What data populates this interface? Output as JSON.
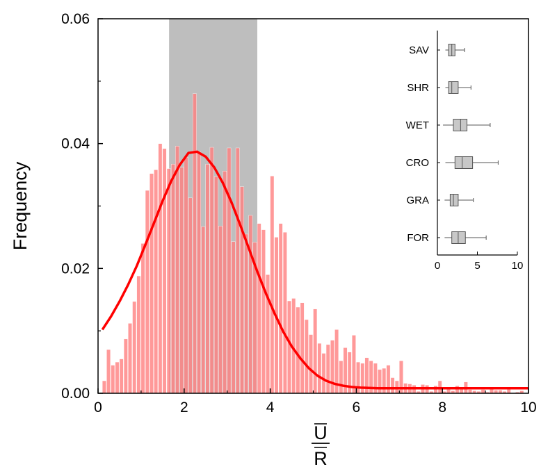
{
  "chart_data": [
    {
      "type": "histogram",
      "xlabel_numerator": "U",
      "xlabel_denominator": "R",
      "ylabel": "Frequency",
      "xlim": [
        0,
        10
      ],
      "ylim": [
        0,
        0.06
      ],
      "xticks": [
        "0",
        "2",
        "4",
        "6",
        "8",
        "10"
      ],
      "yticks": [
        "0.00",
        "0.02",
        "0.04",
        "0.06"
      ],
      "bin_width": 0.1,
      "bins_start": 0.1,
      "values": [
        0.002,
        0.007,
        0.0045,
        0.005,
        0.0055,
        0.0087,
        0.0112,
        0.0147,
        0.0188,
        0.024,
        0.0325,
        0.0352,
        0.0358,
        0.04,
        0.0392,
        0.036,
        0.0367,
        0.0396,
        0.0362,
        0.0378,
        0.0313,
        0.048,
        0.0387,
        0.0267,
        0.0367,
        0.0394,
        0.0347,
        0.0268,
        0.0356,
        0.0393,
        0.0243,
        0.0393,
        0.0331,
        0.0255,
        0.0285,
        0.0242,
        0.0272,
        0.0262,
        0.019,
        0.0348,
        0.025,
        0.0272,
        0.0258,
        0.0148,
        0.0152,
        0.0138,
        0.0145,
        0.0118,
        0.0094,
        0.0135,
        0.008,
        0.0064,
        0.0078,
        0.0085,
        0.0102,
        0.0052,
        0.0073,
        0.0066,
        0.0093,
        0.005,
        0.0048,
        0.0057,
        0.0052,
        0.0048,
        0.0038,
        0.004,
        0.0045,
        0.0025,
        0.002,
        0.0052,
        0.0016,
        0.0015,
        0.0013,
        0.0003,
        0.0014,
        0.0013,
        0.0003,
        0.0012,
        0.002,
        0.0003,
        0.001,
        0.0004,
        0.0012,
        0.001,
        0.0018,
        0.0006,
        0.0004,
        0.0003,
        0.0006,
        0.0002,
        0.001,
        0.0005,
        0.0005,
        0.0003,
        0.0008,
        0.0,
        0.0002,
        0.0004,
        0.0,
        0.0003,
        0.0002,
        0.0002,
        0.0001,
        0.0003,
        0.0001,
        0.0001,
        0.0,
        0.0002,
        0.0001,
        0.0002,
        0.0001,
        0.0002,
        0.0001,
        0.0001,
        0.0002,
        0.0001,
        0.0,
        0.0001,
        0.0001,
        0.0001,
        0.0002,
        0.0002,
        0.0001,
        0.0001,
        0.0,
        0.0,
        0.0001,
        0.0001,
        0.0,
        0.0001,
        0.0001,
        0.0002,
        0.0003,
        0.0006,
        0.0008,
        0.0002,
        0.0001,
        0.0,
        0.0,
        0.0001,
        0.0,
        0.0,
        0.0001,
        0.0001,
        0.0,
        0.0001,
        0.0,
        0.0,
        0.0,
        0.0001
      ],
      "bar_color": "#ff8080",
      "highlight_region": [
        1.65,
        3.7
      ],
      "highlight_color": "#bebebe",
      "fit_curve": {
        "type": "lognormal-like",
        "color": "#ff0000",
        "peak_x": 2.15,
        "peak_y": 0.0388,
        "start_x": 0.1,
        "start_y": 0.0102,
        "end_y": 0.0008,
        "points_x": [
          0.1,
          0.3,
          0.5,
          0.7,
          0.9,
          1.1,
          1.3,
          1.5,
          1.7,
          1.9,
          2.1,
          2.3,
          2.5,
          2.7,
          2.9,
          3.1,
          3.3,
          3.5,
          3.7,
          3.9,
          4.1,
          4.3,
          4.5,
          4.7,
          4.9,
          5.1,
          5.3,
          5.5,
          5.7,
          5.9,
          6.1,
          6.5,
          7,
          8,
          9,
          10
        ],
        "points_y": [
          0.0102,
          0.0123,
          0.0147,
          0.0174,
          0.0204,
          0.0238,
          0.0273,
          0.0308,
          0.034,
          0.0366,
          0.0385,
          0.0387,
          0.0379,
          0.0362,
          0.0337,
          0.0306,
          0.027,
          0.0233,
          0.0195,
          0.016,
          0.0128,
          0.0099,
          0.0075,
          0.0056,
          0.004,
          0.0028,
          0.002,
          0.0015,
          0.0012,
          0.001,
          0.0009,
          0.0008,
          0.0008,
          0.0008,
          0.0008,
          0.0008
        ]
      }
    },
    {
      "type": "boxplot",
      "categories": [
        "SAV",
        "SHR",
        "WET",
        "CRO",
        "GRA",
        "FOR"
      ],
      "xlim": [
        0,
        10
      ],
      "xticks": [
        "0",
        "5",
        "10"
      ],
      "box_color": "#c8c8c8",
      "boxes": [
        {
          "label": "SAV",
          "min": 1.0,
          "q1": 1.4,
          "median": 1.8,
          "q3": 2.2,
          "max": 3.4
        },
        {
          "label": "SHR",
          "min": 1.0,
          "q1": 1.4,
          "median": 1.8,
          "q3": 2.6,
          "max": 4.2
        },
        {
          "label": "WET",
          "min": 0.7,
          "q1": 2.0,
          "median": 2.9,
          "q3": 3.7,
          "max": 6.6
        },
        {
          "label": "CRO",
          "min": 1.0,
          "q1": 2.2,
          "median": 3.1,
          "q3": 4.4,
          "max": 7.6
        },
        {
          "label": "GRA",
          "min": 0.9,
          "q1": 1.6,
          "median": 2.0,
          "q3": 2.6,
          "max": 4.5
        },
        {
          "label": "FOR",
          "min": 0.9,
          "q1": 1.8,
          "median": 2.6,
          "q3": 3.5,
          "max": 6.1
        }
      ]
    }
  ]
}
